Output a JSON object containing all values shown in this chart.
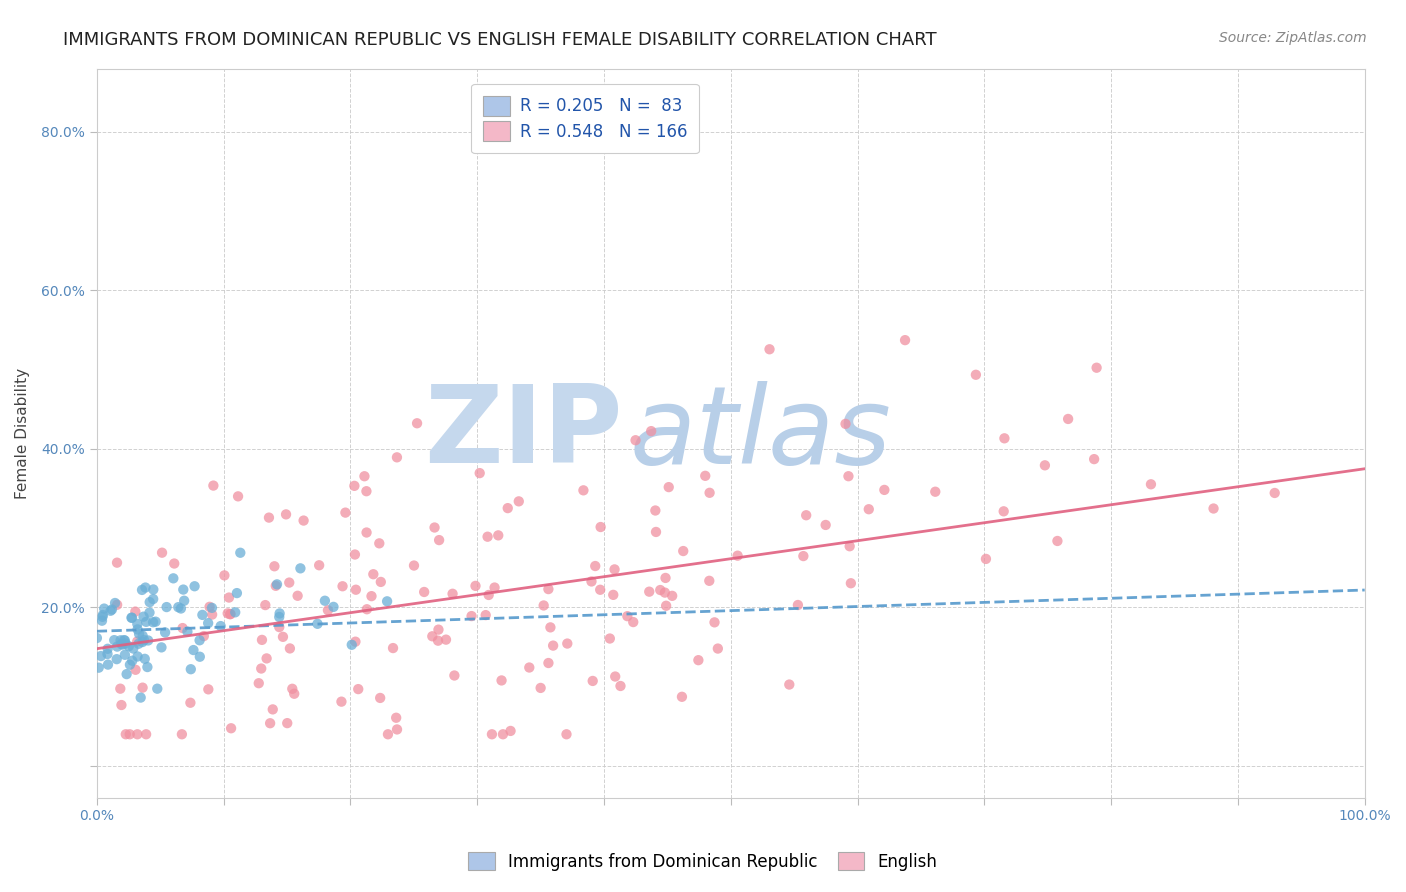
{
  "title": "IMMIGRANTS FROM DOMINICAN REPUBLIC VS ENGLISH FEMALE DISABILITY CORRELATION CHART",
  "source": "Source: ZipAtlas.com",
  "ylabel": "Female Disability",
  "xlim": [
    0.0,
    1.0
  ],
  "ylim": [
    -0.04,
    0.88
  ],
  "x_tick_positions": [
    0.0,
    0.1,
    0.2,
    0.3,
    0.4,
    0.5,
    0.6,
    0.7,
    0.8,
    0.9,
    1.0
  ],
  "x_tick_labels": [
    "0.0%",
    "",
    "",
    "",
    "",
    "",
    "",
    "",
    "",
    "",
    "100.0%"
  ],
  "y_tick_positions": [
    0.0,
    0.2,
    0.4,
    0.6,
    0.8
  ],
  "y_tick_labels": [
    "",
    "20.0%",
    "40.0%",
    "60.0%",
    "80.0%"
  ],
  "legend1_label": "R = 0.205   N =  83",
  "legend2_label": "R = 0.548   N = 166",
  "legend1_color": "#aec6e8",
  "legend2_color": "#f4b8c8",
  "scatter1_color": "#6aaed6",
  "scatter2_color": "#f090a0",
  "line1_color": "#5599cc",
  "line2_color": "#e06080",
  "watermark_zip_color": "#c5d8ed",
  "watermark_atlas_color": "#b8cfe8",
  "background_color": "#ffffff",
  "grid_color": "#cccccc",
  "N1": 83,
  "N2": 166,
  "R1": 0.205,
  "R2": 0.548,
  "scatter_alpha": 0.75,
  "scatter_size": 55,
  "title_fontsize": 13,
  "axis_label_fontsize": 11,
  "tick_fontsize": 10,
  "legend_fontsize": 12,
  "source_fontsize": 10,
  "line1_start_y": 0.17,
  "line1_end_y": 0.222,
  "line2_start_y": 0.148,
  "line2_end_y": 0.375
}
